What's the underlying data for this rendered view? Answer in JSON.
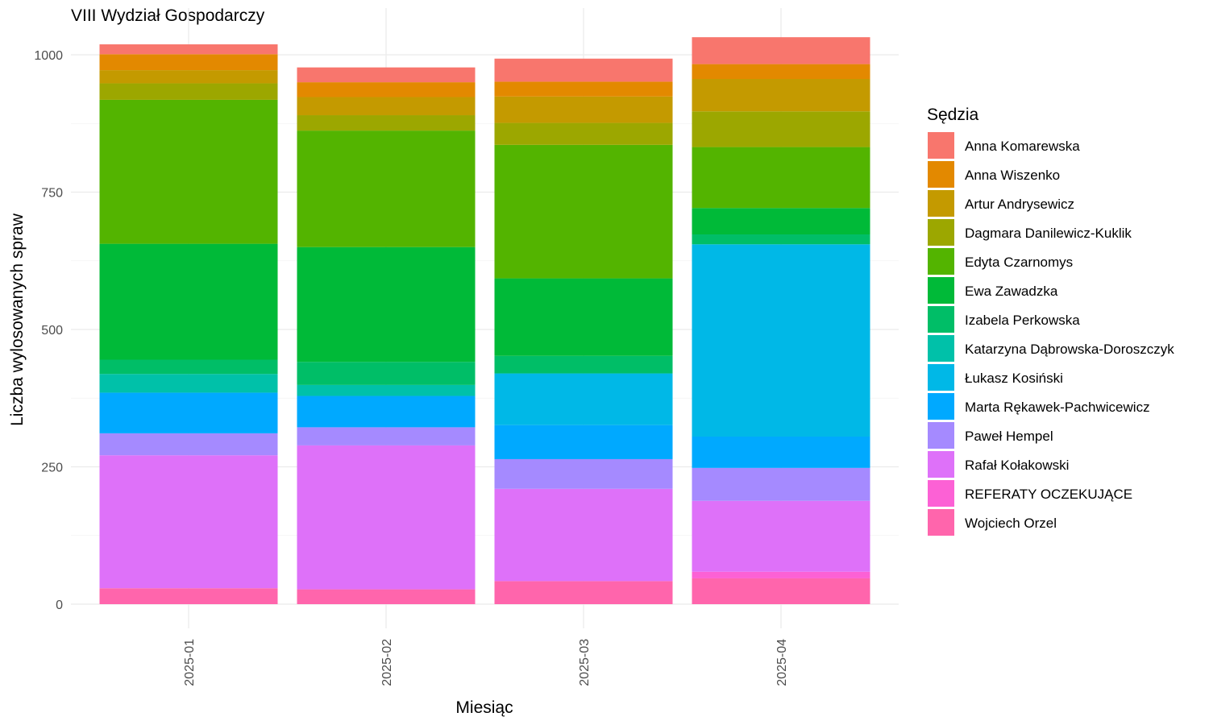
{
  "chart_data": {
    "type": "bar",
    "stacked": true,
    "title": "VIII Wydział Gospodarczy",
    "xlabel": "Miesiąc",
    "ylabel": "Liczba wylosowanych spraw",
    "categories": [
      "2025-01",
      "2025-02",
      "2025-03",
      "2025-04"
    ],
    "ylim": [
      0,
      1030
    ],
    "yticks": [
      0,
      250,
      500,
      750,
      1000
    ],
    "grid": true,
    "legend_title": "Sędzia",
    "legend_position": "right",
    "series": [
      {
        "name": "Wojciech Orzel",
        "color": "#FF65AC",
        "values": [
          29,
          27,
          42,
          47
        ]
      },
      {
        "name": "REFERATY OCZEKUJĄCE",
        "color": "#FC61D5",
        "values": [
          0,
          0,
          0,
          12
        ]
      },
      {
        "name": "Rafał Kołakowski",
        "color": "#DE71F9",
        "values": [
          242,
          262,
          168,
          129
        ]
      },
      {
        "name": "Paweł Hempel",
        "color": "#A58AFF",
        "values": [
          40,
          33,
          54,
          60
        ]
      },
      {
        "name": "Marta Rękawek-Pachwicewicz",
        "color": "#00A9FF",
        "values": [
          74,
          57,
          62,
          57
        ]
      },
      {
        "name": "Łukasz Kosiński",
        "color": "#00B8E7",
        "values": [
          0,
          0,
          94,
          350
        ]
      },
      {
        "name": "Katarzyna Dąbrowska-Doroszczyk",
        "color": "#00C1A9",
        "values": [
          34,
          20,
          0,
          0
        ]
      },
      {
        "name": "Izabela Perkowska",
        "color": "#00BE67",
        "values": [
          26,
          42,
          32,
          18
        ]
      },
      {
        "name": "Ewa Zawadzka",
        "color": "#00BA38",
        "values": [
          211,
          209,
          141,
          48
        ]
      },
      {
        "name": "Edyta Czarnomys",
        "color": "#53B400",
        "values": [
          262,
          212,
          243,
          111
        ]
      },
      {
        "name": "Dagmara Danilewicz-Kuklik",
        "color": "#9CA700",
        "values": [
          30,
          28,
          40,
          65
        ]
      },
      {
        "name": "Artur Andrysewicz",
        "color": "#C49A00",
        "values": [
          24,
          33,
          48,
          59
        ]
      },
      {
        "name": "Anna Wiszenko",
        "color": "#E38900",
        "values": [
          29,
          27,
          27,
          27
        ]
      },
      {
        "name": "Anna Komarewska",
        "color": "#F8766D",
        "values": [
          18,
          27,
          42,
          49
        ]
      }
    ]
  }
}
